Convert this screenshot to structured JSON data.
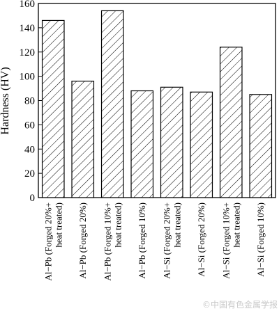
{
  "chart_data": {
    "type": "bar",
    "ylabel": "Hardness (HV)",
    "ylim": [
      0,
      160
    ],
    "yticks": [
      0,
      20,
      40,
      60,
      80,
      100,
      120,
      140,
      160
    ],
    "grid": false,
    "fill_pattern": "diagonal-hatch",
    "categories": [
      [
        "Al−Pb (Forged 20%+",
        "heat treated)"
      ],
      [
        "Al−Pb (Forged 20%)"
      ],
      [
        "Al−Pb (Forged 10%+",
        "heat treated)"
      ],
      [
        "Al−Pb (Forged 10%)"
      ],
      [
        "Al−Si (Forged 20%+",
        "heat treated)"
      ],
      [
        "Al−Si (Forged 20%)"
      ],
      [
        "Al−Si (Forged 10%+",
        "heat treated)"
      ],
      [
        "Al−Si (Forged 10%)"
      ]
    ],
    "values": [
      146,
      96,
      154,
      88,
      91,
      87,
      124,
      85
    ]
  },
  "watermark": "©中国有色金属学报"
}
